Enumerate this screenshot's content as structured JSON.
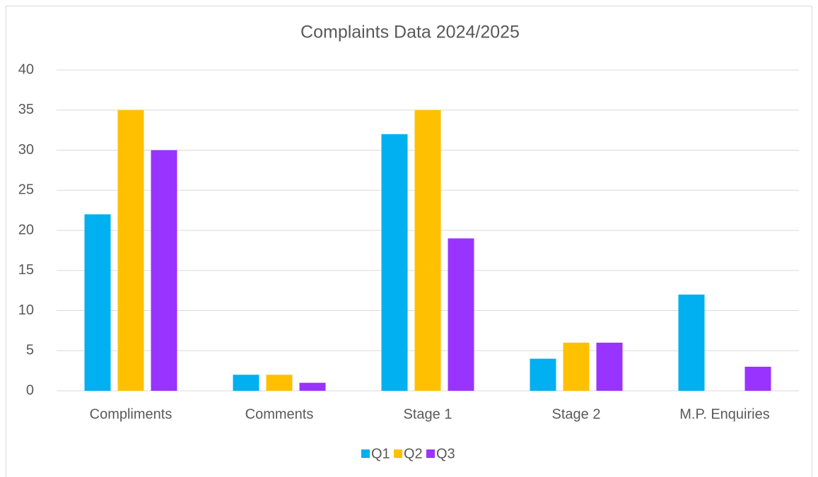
{
  "chart_data": {
    "type": "bar",
    "title": "Complaints Data 2024/2025",
    "categories": [
      "Compliments",
      "Comments",
      "Stage 1",
      "Stage 2",
      "M.P. Enquiries"
    ],
    "series": [
      {
        "name": "Q1",
        "color": "#00b0f0",
        "values": [
          22,
          2,
          32,
          4,
          12
        ]
      },
      {
        "name": "Q2",
        "color": "#ffc000",
        "values": [
          35,
          2,
          35,
          6,
          0
        ]
      },
      {
        "name": "Q3",
        "color": "#9933ff",
        "values": [
          30,
          1,
          19,
          6,
          3
        ]
      }
    ],
    "ylim": [
      0,
      40
    ],
    "yticks": [
      0,
      5,
      10,
      15,
      20,
      25,
      30,
      35,
      40
    ],
    "grid": true,
    "legend": "bottom"
  }
}
